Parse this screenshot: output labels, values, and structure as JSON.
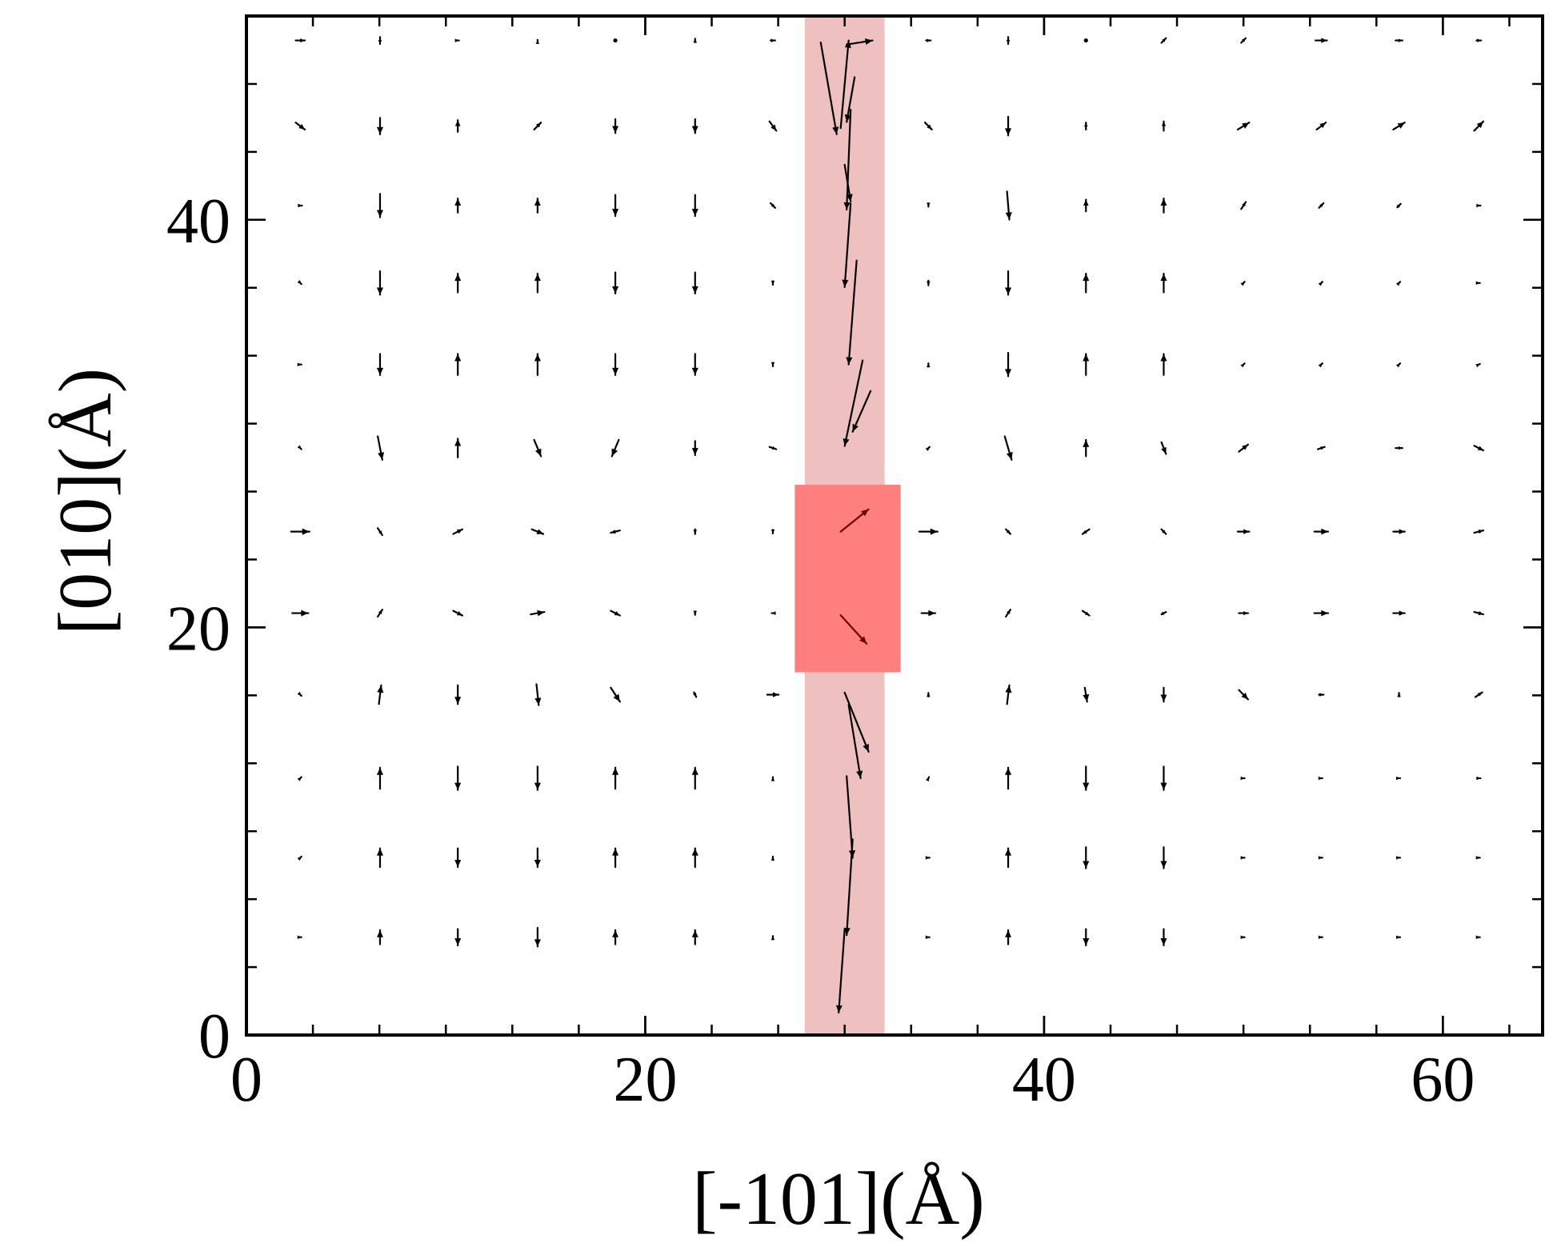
{
  "chart_data": {
    "type": "quiver",
    "xlabel": "[-101](Å)",
    "ylabel": "[010](Å)",
    "xlim": [
      0,
      65
    ],
    "ylim": [
      0,
      50
    ],
    "x_ticks": [
      0,
      20,
      40,
      60
    ],
    "y_ticks": [
      0,
      20,
      40
    ],
    "x_minor_step": 3.3333,
    "y_minor_step": 3.3333,
    "grid": false,
    "legend": "none",
    "highlight_band": {
      "x_range": [
        28,
        32
      ],
      "color": "#eec0c0"
    },
    "highlight_box": {
      "x_range": [
        27.5,
        32.8
      ],
      "y_range": [
        17.8,
        27
      ],
      "color": "#ff7f7f"
    },
    "columns_x": [
      2.7,
      6.7,
      10.6,
      14.6,
      18.5,
      22.5,
      26.4,
      34.2,
      38.2,
      42.1,
      46.0,
      50.0,
      53.9,
      57.8,
      61.8
    ],
    "rows_y": [
      48.8,
      44.6,
      40.7,
      36.9,
      32.9,
      28.8,
      24.7,
      20.7,
      16.7,
      12.6,
      8.7,
      4.8
    ],
    "row_vectors": [
      [
        [
          0.4,
          0
        ],
        [
          0,
          -0.3
        ],
        [
          0.1,
          0
        ],
        [
          0,
          0.05
        ],
        [
          0,
          0
        ],
        [
          0,
          0.15
        ],
        [
          0.2,
          0
        ],
        [
          0.2,
          0
        ],
        [
          0,
          -0.3
        ],
        [
          0,
          0
        ],
        [
          0.2,
          0.2
        ],
        [
          0.2,
          0.2
        ],
        [
          0.5,
          0
        ],
        [
          0.3,
          0
        ],
        [
          0.2,
          0
        ]
      ],
      [
        [
          0.4,
          -0.3
        ],
        [
          0,
          -0.7
        ],
        [
          0,
          0.5
        ],
        [
          0.3,
          0.3
        ],
        [
          0,
          -0.6
        ],
        [
          0,
          -0.6
        ],
        [
          0.3,
          -0.4
        ],
        [
          0.3,
          -0.3
        ],
        [
          0,
          -0.8
        ],
        [
          0,
          0.3
        ],
        [
          0,
          0.4
        ],
        [
          0.5,
          0.3
        ],
        [
          0.4,
          0.3
        ],
        [
          0.5,
          0.3
        ],
        [
          0.4,
          0.4
        ]
      ],
      [
        [
          0.15,
          0
        ],
        [
          0,
          -1.0
        ],
        [
          0,
          0.6
        ],
        [
          0,
          0.6
        ],
        [
          0,
          -0.9
        ],
        [
          0,
          -0.9
        ],
        [
          0.2,
          -0.2
        ],
        [
          0,
          -0.1
        ],
        [
          0.1,
          -1.2
        ],
        [
          0,
          0.5
        ],
        [
          0,
          0.6
        ],
        [
          0.2,
          0.3
        ],
        [
          0.2,
          0.2
        ],
        [
          0.15,
          0.15
        ],
        [
          0.15,
          0
        ]
      ],
      [
        [
          0.1,
          -0.1
        ],
        [
          0,
          -1.0
        ],
        [
          0,
          0.8
        ],
        [
          0,
          0.8
        ],
        [
          0,
          -0.9
        ],
        [
          0,
          -0.9
        ],
        [
          0,
          -0.15
        ],
        [
          0,
          -0.2
        ],
        [
          0,
          -1.0
        ],
        [
          0,
          0.8
        ],
        [
          0,
          0.8
        ],
        [
          0.1,
          0.1
        ],
        [
          0.1,
          0.1
        ],
        [
          0.1,
          0.1
        ],
        [
          0.1,
          0
        ]
      ],
      [
        [
          0.1,
          0
        ],
        [
          0,
          -0.9
        ],
        [
          0,
          0.9
        ],
        [
          0,
          0.9
        ],
        [
          0,
          -0.9
        ],
        [
          0,
          -0.9
        ],
        [
          0,
          -0.15
        ],
        [
          0,
          0.1
        ],
        [
          0,
          -1.0
        ],
        [
          0,
          0.9
        ],
        [
          0,
          0.9
        ],
        [
          0.1,
          0.1
        ],
        [
          0.1,
          0.1
        ],
        [
          0.1,
          0.1
        ],
        [
          0.1,
          0.05
        ]
      ],
      [
        [
          0.1,
          -0.1
        ],
        [
          0.2,
          -1.0
        ],
        [
          0,
          0.8
        ],
        [
          0.3,
          -0.7
        ],
        [
          -0.3,
          -0.7
        ],
        [
          0,
          -0.6
        ],
        [
          0.3,
          -0.1
        ],
        [
          0.1,
          0.1
        ],
        [
          0.3,
          -1.0
        ],
        [
          0,
          0.7
        ],
        [
          0.2,
          -0.5
        ],
        [
          0.4,
          0.3
        ],
        [
          0.3,
          0.1
        ],
        [
          0.3,
          0
        ],
        [
          0.4,
          -0.2
        ]
      ],
      [
        [
          0.8,
          0
        ],
        [
          0.2,
          -0.3
        ],
        [
          0.4,
          0.2
        ],
        [
          0.5,
          -0.2
        ],
        [
          -0.4,
          -0.1
        ],
        [
          0,
          -0.2
        ],
        [
          0,
          -0.15
        ],
        [
          0.8,
          0
        ],
        [
          0.2,
          -0.2
        ],
        [
          -0.3,
          -0.2
        ],
        [
          0.2,
          -0.2
        ],
        [
          0.5,
          0
        ],
        [
          0.6,
          0
        ],
        [
          0.5,
          0
        ],
        [
          0.4,
          0.1
        ]
      ],
      [
        [
          0.7,
          0
        ],
        [
          0.2,
          0.3
        ],
        [
          0.4,
          -0.2
        ],
        [
          0.6,
          0.1
        ],
        [
          0.4,
          -0.2
        ],
        [
          0,
          -0.15
        ],
        [
          -0.1,
          0
        ],
        [
          0.6,
          0
        ],
        [
          0.2,
          0.3
        ],
        [
          0.3,
          -0.2
        ],
        [
          0.2,
          0.1
        ],
        [
          0.4,
          0
        ],
        [
          0.6,
          0
        ],
        [
          0.5,
          0
        ],
        [
          0.4,
          -0.1
        ]
      ],
      [
        [
          0.1,
          -0.1
        ],
        [
          0.1,
          0.8
        ],
        [
          0,
          -0.8
        ],
        [
          0.1,
          -0.9
        ],
        [
          0.4,
          -0.6
        ],
        [
          0.1,
          -0.2
        ],
        [
          0.5,
          0
        ],
        [
          0,
          0.15
        ],
        [
          0.1,
          0.8
        ],
        [
          0.1,
          -0.6
        ],
        [
          0,
          -0.6
        ],
        [
          0.4,
          -0.4
        ],
        [
          0.2,
          0
        ],
        [
          0,
          0.15
        ],
        [
          0.3,
          0.2
        ]
      ],
      [
        [
          0.1,
          0.1
        ],
        [
          0,
          0.9
        ],
        [
          0,
          -1.0
        ],
        [
          0,
          -1.0
        ],
        [
          0,
          0.9
        ],
        [
          0,
          0.9
        ],
        [
          0,
          0.1
        ],
        [
          0.05,
          0.1
        ],
        [
          0,
          0.9
        ],
        [
          0,
          -1.0
        ],
        [
          0,
          -1.0
        ],
        [
          0.1,
          0
        ],
        [
          0.1,
          0
        ],
        [
          0.1,
          0
        ],
        [
          0.15,
          0
        ]
      ],
      [
        [
          0.1,
          0.1
        ],
        [
          0,
          0.8
        ],
        [
          0,
          -0.8
        ],
        [
          0,
          -0.8
        ],
        [
          0,
          0.8
        ],
        [
          0,
          0.8
        ],
        [
          0,
          0.1
        ],
        [
          0.1,
          0
        ],
        [
          0,
          0.8
        ],
        [
          0,
          -0.9
        ],
        [
          0,
          -0.9
        ],
        [
          0.1,
          0
        ],
        [
          0.1,
          0
        ],
        [
          0.1,
          0
        ],
        [
          0.1,
          0
        ]
      ],
      [
        [
          0.1,
          0
        ],
        [
          0,
          0.6
        ],
        [
          0,
          -0.7
        ],
        [
          0,
          -0.8
        ],
        [
          0,
          0.6
        ],
        [
          0,
          0.6
        ],
        [
          0,
          0.1
        ],
        [
          0.1,
          0
        ],
        [
          0,
          0.6
        ],
        [
          0,
          -0.7
        ],
        [
          0,
          -0.7
        ],
        [
          0.1,
          0
        ],
        [
          0.1,
          0
        ],
        [
          0.1,
          0
        ],
        [
          0.1,
          0
        ]
      ]
    ],
    "chain_segments": [
      {
        "x1": 28.8,
        "y1": 48.7,
        "x2": 29.6,
        "y2": 44.2
      },
      {
        "x1": 29.8,
        "y1": 44.5,
        "x2": 30.2,
        "y2": 48.8
      },
      {
        "x1": 30.1,
        "y1": 48.6,
        "x2": 31.4,
        "y2": 48.8
      },
      {
        "x1": 30.5,
        "y1": 47.0,
        "x2": 30.1,
        "y2": 44.8
      },
      {
        "x1": 30.3,
        "y1": 45.4,
        "x2": 30.1,
        "y2": 40.5
      },
      {
        "x1": 30.0,
        "y1": 42.7,
        "x2": 30.3,
        "y2": 40.9
      },
      {
        "x1": 30.3,
        "y1": 40.8,
        "x2": 30.0,
        "y2": 36.7
      },
      {
        "x1": 30.6,
        "y1": 38.0,
        "x2": 30.2,
        "y2": 32.9
      },
      {
        "x1": 30.9,
        "y1": 33.1,
        "x2": 30.0,
        "y2": 28.9
      },
      {
        "x1": 31.3,
        "y1": 31.6,
        "x2": 30.4,
        "y2": 29.6
      },
      {
        "x1": 30.0,
        "y1": 16.8,
        "x2": 31.2,
        "y2": 13.9
      },
      {
        "x1": 30.2,
        "y1": 16.2,
        "x2": 30.8,
        "y2": 12.6
      },
      {
        "x1": 30.1,
        "y1": 12.7,
        "x2": 30.4,
        "y2": 8.7
      },
      {
        "x1": 30.4,
        "y1": 9.6,
        "x2": 30.1,
        "y2": 4.9
      },
      {
        "x1": 30.0,
        "y1": 5.2,
        "x2": 29.7,
        "y2": 1.1
      }
    ],
    "highlight_arrows": [
      {
        "x1": 29.8,
        "y1": 24.7,
        "x2": 31.2,
        "y2": 25.8
      },
      {
        "x1": 29.8,
        "y1": 20.6,
        "x2": 31.1,
        "y2": 19.2
      }
    ]
  }
}
